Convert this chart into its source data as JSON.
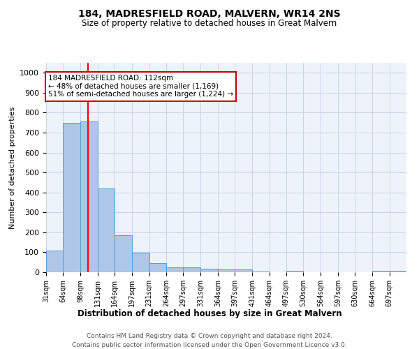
{
  "title": "184, MADRESFIELD ROAD, MALVERN, WR14 2NS",
  "subtitle": "Size of property relative to detached houses in Great Malvern",
  "xlabel": "Distribution of detached houses by size in Great Malvern",
  "ylabel": "Number of detached properties",
  "bin_labels": [
    "31sqm",
    "64sqm",
    "98sqm",
    "131sqm",
    "164sqm",
    "197sqm",
    "231sqm",
    "264sqm",
    "297sqm",
    "331sqm",
    "364sqm",
    "397sqm",
    "431sqm",
    "464sqm",
    "497sqm",
    "530sqm",
    "564sqm",
    "597sqm",
    "630sqm",
    "664sqm",
    "697sqm"
  ],
  "bar_values": [
    110,
    750,
    755,
    420,
    185,
    97,
    45,
    23,
    25,
    18,
    13,
    15,
    5,
    0,
    8,
    0,
    0,
    0,
    0,
    8,
    8
  ],
  "bar_color": "#aec6e8",
  "bar_edge_color": "#5b9bd5",
  "ylim": [
    0,
    1050
  ],
  "yticks": [
    0,
    100,
    200,
    300,
    400,
    500,
    600,
    700,
    800,
    900,
    1000
  ],
  "red_line_x": 112,
  "bin_edges": [
    31,
    64,
    98,
    131,
    164,
    197,
    231,
    264,
    297,
    331,
    364,
    397,
    431,
    464,
    497,
    530,
    564,
    597,
    630,
    664,
    697,
    730
  ],
  "annotation_text": "184 MADRESFIELD ROAD: 112sqm\n← 48% of detached houses are smaller (1,169)\n51% of semi-detached houses are larger (1,224) →",
  "annotation_box_color": "#ffffff",
  "annotation_box_edge_color": "#cc0000",
  "footer1": "Contains HM Land Registry data © Crown copyright and database right 2024.",
  "footer2": "Contains public sector information licensed under the Open Government Licence v3.0.",
  "bg_color": "#eef2fa",
  "grid_color": "#c8d4e8"
}
